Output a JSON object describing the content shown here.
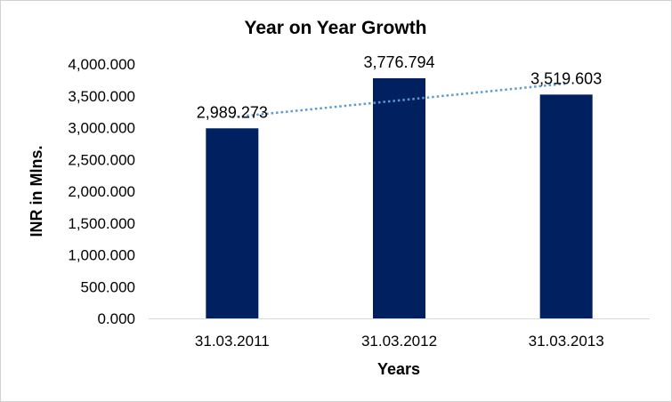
{
  "chart_data": {
    "type": "bar",
    "title": "Year on Year Growth",
    "xlabel": "Years",
    "ylabel": "INR in Mlns.",
    "categories": [
      "31.03.2011",
      "31.03.2012",
      "31.03.2013"
    ],
    "values": [
      2989.273,
      3776.794,
      3519.603
    ],
    "data_labels": [
      "2,989.273",
      "3,776.794",
      "3,519.603"
    ],
    "ylim": [
      0,
      4000
    ],
    "yticks": [
      0,
      500,
      1000,
      1500,
      2000,
      2500,
      3000,
      3500,
      4000
    ],
    "ytick_labels": [
      "0.000",
      "500.000",
      "1,000.000",
      "1,500.000",
      "2,000.000",
      "2,500.000",
      "3,000.000",
      "3,500.000",
      "4,000.000"
    ],
    "trendline": {
      "type": "linear",
      "style": "dotted",
      "color": "#5B9BD5"
    },
    "grid": false,
    "legend": "none",
    "colors": {
      "bar": "#002060"
    }
  }
}
